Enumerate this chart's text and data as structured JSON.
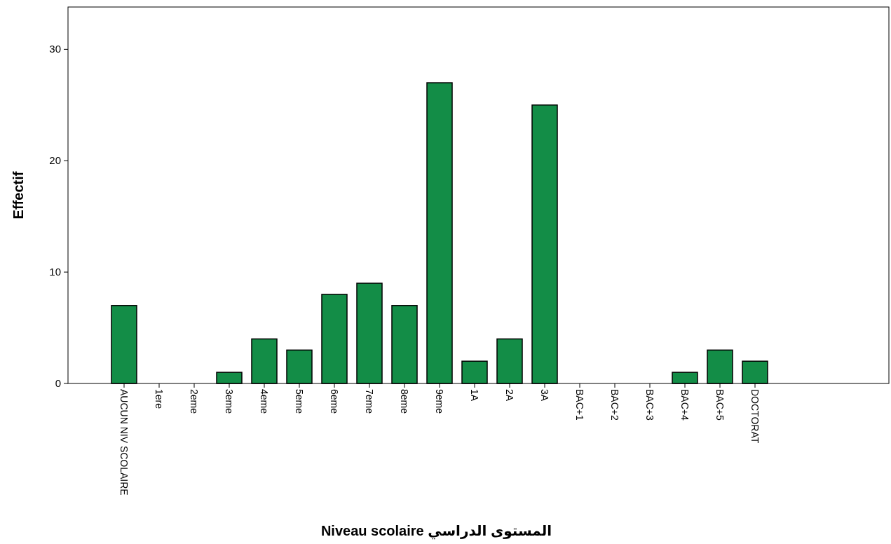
{
  "chart_data": {
    "type": "bar",
    "xlabel": "Niveau scolaire المستوى الدراسي",
    "ylabel": "Effectif",
    "categories": [
      "AUCUN NIV SCOLAIRE",
      "1ere",
      "2eme",
      "3eme",
      "4eme",
      "5eme",
      "6eme",
      "7eme",
      "8eme",
      "9eme",
      "1A",
      "2A",
      "3A",
      "BAC+1",
      "BAC+2",
      "BAC+3",
      "BAC+4",
      "BAC+5",
      "DOCTORAT"
    ],
    "values": [
      7,
      0,
      0,
      1,
      4,
      3,
      8,
      9,
      7,
      27,
      2,
      4,
      25,
      0,
      0,
      0,
      1,
      3,
      2
    ],
    "color": "#138d47",
    "ylim": [
      0,
      33.8
    ],
    "yticks": [
      0,
      10,
      20,
      30
    ]
  }
}
